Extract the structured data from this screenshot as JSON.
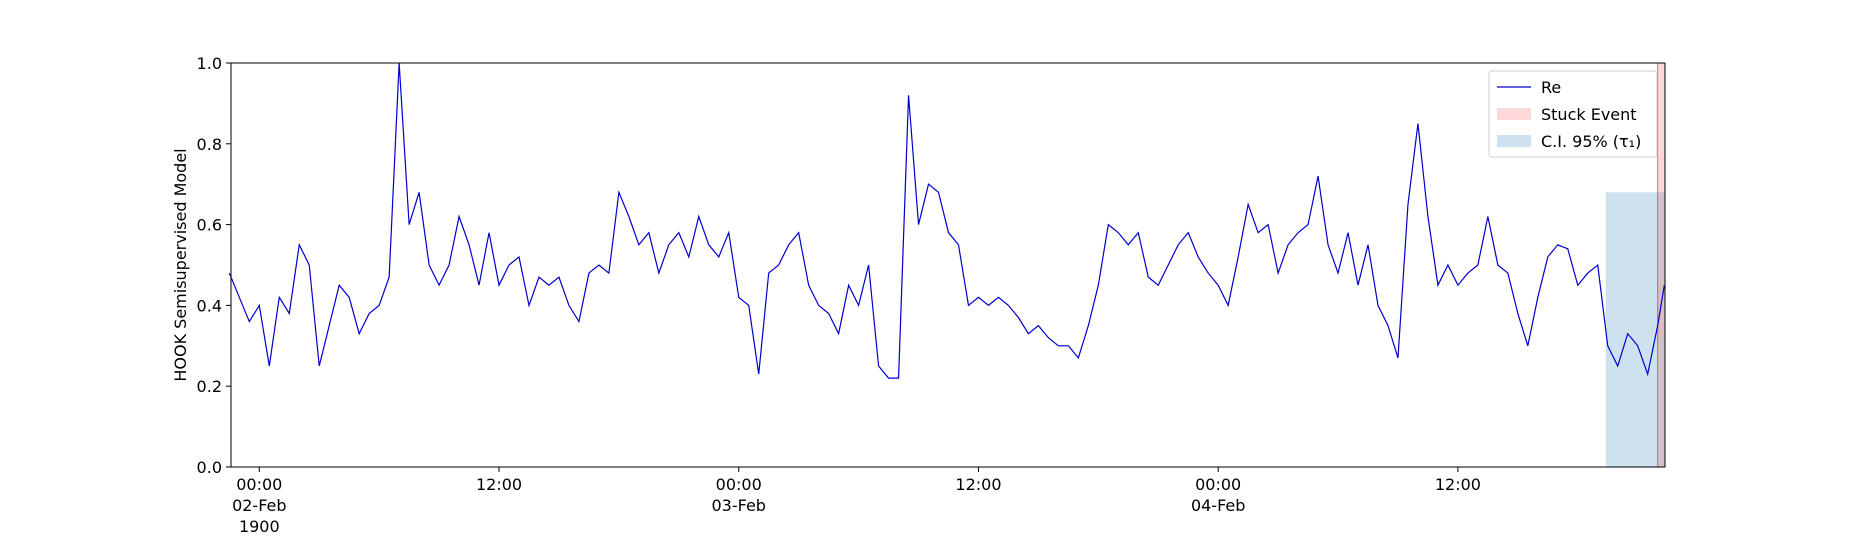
{
  "chart_data": {
    "type": "line",
    "ylabel": "HOOK Semisupervised Model",
    "xlim": [
      "1900-02-01 22:35",
      "1900-02-04 22:22"
    ],
    "ylim": [
      0,
      1
    ],
    "yticks": [
      {
        "value": 0,
        "label": "0.0"
      },
      0.2,
      0.4,
      0.6,
      0.8,
      {
        "value": 1,
        "label": "1.0"
      }
    ],
    "xticks": [
      {
        "value": "1900-02-02 00:00",
        "label": "00:00\n02-Feb\n1900"
      },
      {
        "value": "1900-02-02 12:00",
        "label": "12:00"
      },
      {
        "value": "1900-02-03 00:00",
        "label": "00:00\n03-Feb"
      },
      {
        "value": "1900-02-03 12:00",
        "label": "12:00"
      },
      {
        "value": "1900-02-04 00:00",
        "label": "00:00\n04-Feb"
      },
      {
        "value": "1900-02-04 12:00",
        "label": "12:00"
      }
    ],
    "legend": "upper right",
    "x": [
      "1900-02-01 22:30",
      "1900-02-01 23:00",
      "1900-02-01 23:30",
      "1900-02-02 00:00",
      "1900-02-02 00:30",
      "1900-02-02 01:00",
      "1900-02-02 01:30",
      "1900-02-02 02:00",
      "1900-02-02 02:30",
      "1900-02-02 03:00",
      "1900-02-02 03:30",
      "1900-02-02 04:00",
      "1900-02-02 04:30",
      "1900-02-02 05:00",
      "1900-02-02 05:30",
      "1900-02-02 06:00",
      "1900-02-02 06:30",
      "1900-02-02 07:00",
      "1900-02-02 07:30",
      "1900-02-02 08:00",
      "1900-02-02 08:30",
      "1900-02-02 09:00",
      "1900-02-02 09:30",
      "1900-02-02 10:00",
      "1900-02-02 10:30",
      "1900-02-02 11:00",
      "1900-02-02 11:30",
      "1900-02-02 12:00",
      "1900-02-02 12:30",
      "1900-02-02 13:00",
      "1900-02-02 13:30",
      "1900-02-02 14:00",
      "1900-02-02 14:30",
      "1900-02-02 15:00",
      "1900-02-02 15:30",
      "1900-02-02 16:00",
      "1900-02-02 16:30",
      "1900-02-02 17:00",
      "1900-02-02 17:30",
      "1900-02-02 18:00",
      "1900-02-02 18:30",
      "1900-02-02 19:00",
      "1900-02-02 19:30",
      "1900-02-02 20:00",
      "1900-02-02 20:30",
      "1900-02-02 21:00",
      "1900-02-02 21:30",
      "1900-02-02 22:00",
      "1900-02-02 22:30",
      "1900-02-02 23:00",
      "1900-02-02 23:30",
      "1900-02-03 00:00",
      "1900-02-03 00:30",
      "1900-02-03 01:00",
      "1900-02-03 01:30",
      "1900-02-03 02:00",
      "1900-02-03 02:30",
      "1900-02-03 03:00",
      "1900-02-03 03:30",
      "1900-02-03 04:00",
      "1900-02-03 04:30",
      "1900-02-03 05:00",
      "1900-02-03 05:30",
      "1900-02-03 06:00",
      "1900-02-03 06:30",
      "1900-02-03 07:00",
      "1900-02-03 07:30",
      "1900-02-03 08:00",
      "1900-02-03 08:30",
      "1900-02-03 09:00",
      "1900-02-03 09:30",
      "1900-02-03 10:00",
      "1900-02-03 10:30",
      "1900-02-03 11:00",
      "1900-02-03 11:30",
      "1900-02-03 12:00",
      "1900-02-03 12:30",
      "1900-02-03 13:00",
      "1900-02-03 13:30",
      "1900-02-03 14:00",
      "1900-02-03 14:30",
      "1900-02-03 15:00",
      "1900-02-03 15:30",
      "1900-02-03 16:00",
      "1900-02-03 16:30",
      "1900-02-03 17:00",
      "1900-02-03 17:30",
      "1900-02-03 18:00",
      "1900-02-03 18:30",
      "1900-02-03 19:00",
      "1900-02-03 19:30",
      "1900-02-03 20:00",
      "1900-02-03 20:30",
      "1900-02-03 21:00",
      "1900-02-03 21:30",
      "1900-02-03 22:00",
      "1900-02-03 22:30",
      "1900-02-03 23:00",
      "1900-02-03 23:30",
      "1900-02-04 00:00",
      "1900-02-04 00:30",
      "1900-02-04 01:00",
      "1900-02-04 01:30",
      "1900-02-04 02:00",
      "1900-02-04 02:30",
      "1900-02-04 03:00",
      "1900-02-04 03:30",
      "1900-02-04 04:00",
      "1900-02-04 04:30",
      "1900-02-04 05:00",
      "1900-02-04 05:30",
      "1900-02-04 06:00",
      "1900-02-04 06:30",
      "1900-02-04 07:00",
      "1900-02-04 07:30",
      "1900-02-04 08:00",
      "1900-02-04 08:30",
      "1900-02-04 09:00",
      "1900-02-04 09:30",
      "1900-02-04 10:00",
      "1900-02-04 10:30",
      "1900-02-04 11:00",
      "1900-02-04 11:30",
      "1900-02-04 12:00",
      "1900-02-04 12:30",
      "1900-02-04 13:00",
      "1900-02-04 13:30",
      "1900-02-04 14:00",
      "1900-02-04 14:30",
      "1900-02-04 15:00",
      "1900-02-04 15:30",
      "1900-02-04 16:00",
      "1900-02-04 16:30",
      "1900-02-04 17:00",
      "1900-02-04 17:30",
      "1900-02-04 18:00",
      "1900-02-04 18:30",
      "1900-02-04 19:00",
      "1900-02-04 19:30",
      "1900-02-04 20:00",
      "1900-02-04 20:30",
      "1900-02-04 21:00",
      "1900-02-04 21:30",
      "1900-02-04 22:00",
      "1900-02-04 22:20"
    ],
    "series": [
      {
        "name": "Re",
        "color": "#0000cc",
        "values": [
          0.48,
          0.42,
          0.36,
          0.4,
          0.25,
          0.42,
          0.38,
          0.55,
          0.5,
          0.25,
          0.35,
          0.45,
          0.42,
          0.33,
          0.38,
          0.4,
          0.47,
          1.0,
          0.6,
          0.68,
          0.5,
          0.45,
          0.5,
          0.62,
          0.55,
          0.45,
          0.58,
          0.45,
          0.5,
          0.52,
          0.4,
          0.47,
          0.45,
          0.47,
          0.4,
          0.36,
          0.48,
          0.5,
          0.48,
          0.68,
          0.62,
          0.55,
          0.58,
          0.48,
          0.55,
          0.58,
          0.52,
          0.62,
          0.55,
          0.52,
          0.58,
          0.42,
          0.4,
          0.23,
          0.48,
          0.5,
          0.55,
          0.58,
          0.45,
          0.4,
          0.38,
          0.33,
          0.45,
          0.4,
          0.5,
          0.25,
          0.22,
          0.22,
          0.92,
          0.6,
          0.7,
          0.68,
          0.58,
          0.55,
          0.4,
          0.42,
          0.4,
          0.42,
          0.4,
          0.37,
          0.33,
          0.35,
          0.32,
          0.3,
          0.3,
          0.27,
          0.35,
          0.45,
          0.6,
          0.58,
          0.55,
          0.58,
          0.47,
          0.45,
          0.5,
          0.55,
          0.58,
          0.52,
          0.48,
          0.45,
          0.4,
          0.52,
          0.65,
          0.58,
          0.6,
          0.48,
          0.55,
          0.58,
          0.6,
          0.72,
          0.55,
          0.48,
          0.58,
          0.45,
          0.55,
          0.4,
          0.35,
          0.27,
          0.65,
          0.85,
          0.62,
          0.45,
          0.5,
          0.45,
          0.48,
          0.5,
          0.62,
          0.5,
          0.48,
          0.38,
          0.3,
          0.42,
          0.52,
          0.55,
          0.54,
          0.45,
          0.48,
          0.5,
          0.3,
          0.25,
          0.33,
          0.3,
          0.23,
          0.35,
          0.45
        ]
      }
    ],
    "spans": [
      {
        "name": "Stuck Event",
        "color": "#ff0000",
        "x": [
          "1900-02-04 22:00",
          "1900-02-04 22:22"
        ],
        "y": [
          0,
          1
        ]
      },
      {
        "name": "C.I. 95% (τ₁)",
        "color": "#1f77b4",
        "x": [
          "1900-02-04 19:24",
          "1900-02-04 22:22"
        ],
        "y": [
          0,
          0.68
        ]
      }
    ]
  }
}
